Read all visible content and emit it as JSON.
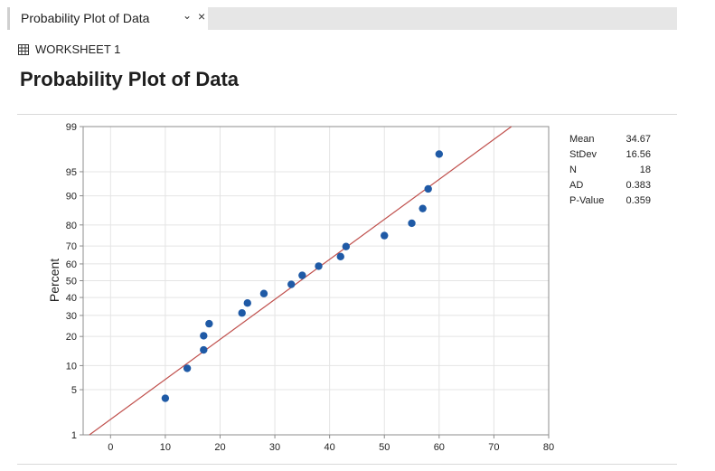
{
  "tab": {
    "title": "Probability Plot of Data",
    "chevron": "⌄",
    "close": "×"
  },
  "worksheet": {
    "icon": "grid-icon",
    "label": "WORKSHEET 1"
  },
  "page_title": "Probability Plot of Data",
  "stats": [
    {
      "label": "Mean",
      "value": "34.67"
    },
    {
      "label": "StDev",
      "value": "16.56"
    },
    {
      "label": "N",
      "value": "18"
    },
    {
      "label": "AD",
      "value": "0.383"
    },
    {
      "label": "P-Value",
      "value": "0.359"
    }
  ],
  "colors": {
    "points": "#1f5aa6",
    "fit_line": "#c0504d",
    "grid": "#e4e4e4",
    "axis": "#8c8c8c"
  },
  "chart_data": {
    "type": "scatter",
    "title": "",
    "xlabel": "",
    "ylabel": "Percent",
    "y_scale": "normal-probability",
    "xlim": [
      -5,
      80
    ],
    "x_ticks": [
      0,
      10,
      20,
      30,
      40,
      50,
      60,
      70,
      80
    ],
    "y_ticks": [
      1,
      5,
      10,
      20,
      30,
      40,
      50,
      60,
      70,
      80,
      90,
      95,
      99
    ],
    "grid": true,
    "fit_line": {
      "mean": 34.67,
      "stdev": 16.56
    },
    "points": [
      {
        "x": 10,
        "y": 3.8
      },
      {
        "x": 14,
        "y": 9.3
      },
      {
        "x": 17,
        "y": 14.8
      },
      {
        "x": 17,
        "y": 20.3
      },
      {
        "x": 18,
        "y": 25.8
      },
      {
        "x": 24,
        "y": 31.3
      },
      {
        "x": 25,
        "y": 36.8
      },
      {
        "x": 28,
        "y": 42.3
      },
      {
        "x": 33,
        "y": 47.8
      },
      {
        "x": 35,
        "y": 53.2
      },
      {
        "x": 38,
        "y": 58.7
      },
      {
        "x": 42,
        "y": 64.2
      },
      {
        "x": 43,
        "y": 69.7
      },
      {
        "x": 50,
        "y": 75.2
      },
      {
        "x": 55,
        "y": 80.7
      },
      {
        "x": 57,
        "y": 86.2
      },
      {
        "x": 58,
        "y": 91.7
      },
      {
        "x": 60,
        "y": 97.2
      }
    ]
  }
}
